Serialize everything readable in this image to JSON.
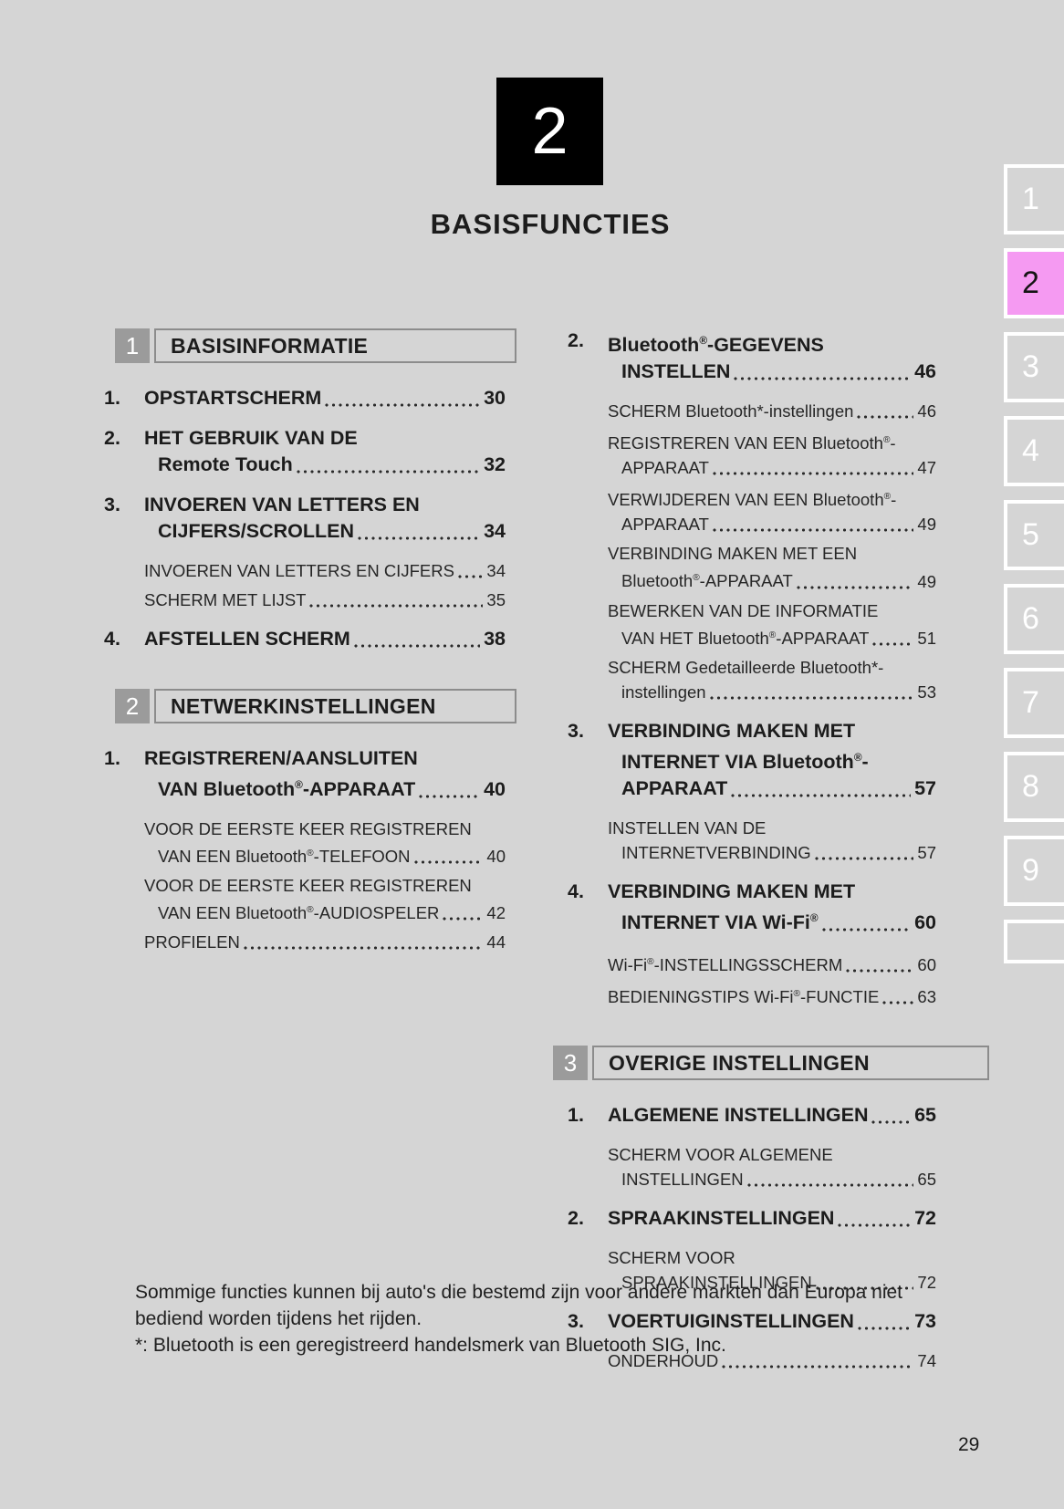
{
  "page": {
    "chapter_number": "2",
    "chapter_title": "BASISFUNCTIES",
    "page_number": "29",
    "footer_lines": [
      "Sommige functies kunnen bij auto's die bestemd zijn voor andere markten dan Europa niet bediend worden tijdens het rijden.",
      "*: Bluetooth is een geregistreerd handelsmerk van Bluetooth SIG, Inc."
    ]
  },
  "colors": {
    "page_background": "#d5d5d5",
    "chapter_box_background": "#000000",
    "active_tab_background": "#f59af2",
    "section_badge_background": "#9b9b9b",
    "text": "#1c1c1c"
  },
  "tabs": {
    "active": "2",
    "items": [
      "1",
      "2",
      "3",
      "4",
      "5",
      "6",
      "7",
      "8",
      "9",
      ""
    ]
  },
  "toc": {
    "left": [
      {
        "header": {
          "badge": "1",
          "title": "BASISINFORMATIE"
        },
        "entries": [
          {
            "num": "1.",
            "lines": [
              "OPSTARTSCHERM"
            ],
            "page": "30"
          },
          {
            "num": "2.",
            "lines": [
              "HET GEBRUIK VAN DE",
              "Remote Touch"
            ],
            "page": "32"
          },
          {
            "num": "3.",
            "lines": [
              "INVOEREN VAN LETTERS EN",
              "CIJFERS/SCROLLEN"
            ],
            "page": "34"
          },
          {
            "num": "",
            "lines": [
              "INVOEREN VAN LETTERS EN CIJFERS"
            ],
            "page": "34"
          },
          {
            "num": "",
            "lines": [
              "SCHERM MET LIJST"
            ],
            "page": "35"
          },
          {
            "num": "4.",
            "lines": [
              "AFSTELLEN SCHERM"
            ],
            "page": "38"
          }
        ]
      },
      {
        "header": {
          "badge": "2",
          "title": "NETWERKINSTELLINGEN"
        },
        "entries": [
          {
            "num": "1.",
            "lines": [
              "REGISTREREN/AANSLUITEN",
              "VAN Bluetooth®-APPARAAT"
            ],
            "page": "40"
          },
          {
            "num": "",
            "lines": [
              "VOOR DE EERSTE KEER REGISTREREN",
              "VAN EEN Bluetooth®-TELEFOON"
            ],
            "page": "40"
          },
          {
            "num": "",
            "lines": [
              "VOOR DE EERSTE KEER REGISTREREN",
              "VAN EEN Bluetooth®-AUDIOSPELER"
            ],
            "page": "42"
          },
          {
            "num": "",
            "lines": [
              "PROFIELEN"
            ],
            "page": "44"
          }
        ]
      }
    ],
    "right": [
      {
        "header": null,
        "entries": [
          {
            "num": "2.",
            "lines": [
              "Bluetooth®-GEGEVENS",
              "INSTELLEN"
            ],
            "page": "46"
          },
          {
            "num": "",
            "lines": [
              "SCHERM Bluetooth*-instellingen"
            ],
            "page": "46"
          },
          {
            "num": "",
            "lines": [
              "REGISTREREN VAN EEN Bluetooth®-",
              "APPARAAT"
            ],
            "page": "47"
          },
          {
            "num": "",
            "lines": [
              "VERWIJDEREN VAN EEN Bluetooth®-",
              "APPARAAT"
            ],
            "page": "49"
          },
          {
            "num": "",
            "lines": [
              "VERBINDING MAKEN MET EEN",
              "Bluetooth®-APPARAAT"
            ],
            "page": "49"
          },
          {
            "num": "",
            "lines": [
              "BEWERKEN VAN DE INFORMATIE",
              "VAN HET Bluetooth®-APPARAAT"
            ],
            "page": "51"
          },
          {
            "num": "",
            "lines": [
              "SCHERM Gedetailleerde Bluetooth*-",
              "instellingen"
            ],
            "page": "53"
          },
          {
            "num": "3.",
            "lines": [
              "VERBINDING MAKEN MET",
              "INTERNET VIA Bluetooth®-",
              "APPARAAT"
            ],
            "page": "57"
          },
          {
            "num": "",
            "lines": [
              "INSTELLEN VAN DE",
              "INTERNETVERBINDING"
            ],
            "page": "57"
          },
          {
            "num": "4.",
            "lines": [
              "VERBINDING MAKEN MET",
              "INTERNET VIA Wi-Fi®"
            ],
            "page": "60"
          },
          {
            "num": "",
            "lines": [
              "Wi-Fi®-INSTELLINGSSCHERM"
            ],
            "page": "60"
          },
          {
            "num": "",
            "lines": [
              "BEDIENINGSTIPS Wi-Fi®-FUNCTIE"
            ],
            "page": "63"
          }
        ]
      },
      {
        "header": {
          "badge": "3",
          "title": "OVERIGE INSTELLINGEN"
        },
        "entries": [
          {
            "num": "1.",
            "lines": [
              "ALGEMENE INSTELLINGEN"
            ],
            "page": "65"
          },
          {
            "num": "",
            "lines": [
              "SCHERM VOOR ALGEMENE",
              "INSTELLINGEN"
            ],
            "page": "65"
          },
          {
            "num": "2.",
            "lines": [
              "SPRAAKINSTELLINGEN"
            ],
            "page": "72"
          },
          {
            "num": "",
            "lines": [
              "SCHERM VOOR",
              "SPRAAKINSTELLINGEN"
            ],
            "page": "72"
          },
          {
            "num": "3.",
            "lines": [
              "VOERTUIGINSTELLINGEN"
            ],
            "page": "73"
          },
          {
            "num": "",
            "lines": [
              "ONDERHOUD"
            ],
            "page": "74"
          }
        ]
      }
    ]
  }
}
